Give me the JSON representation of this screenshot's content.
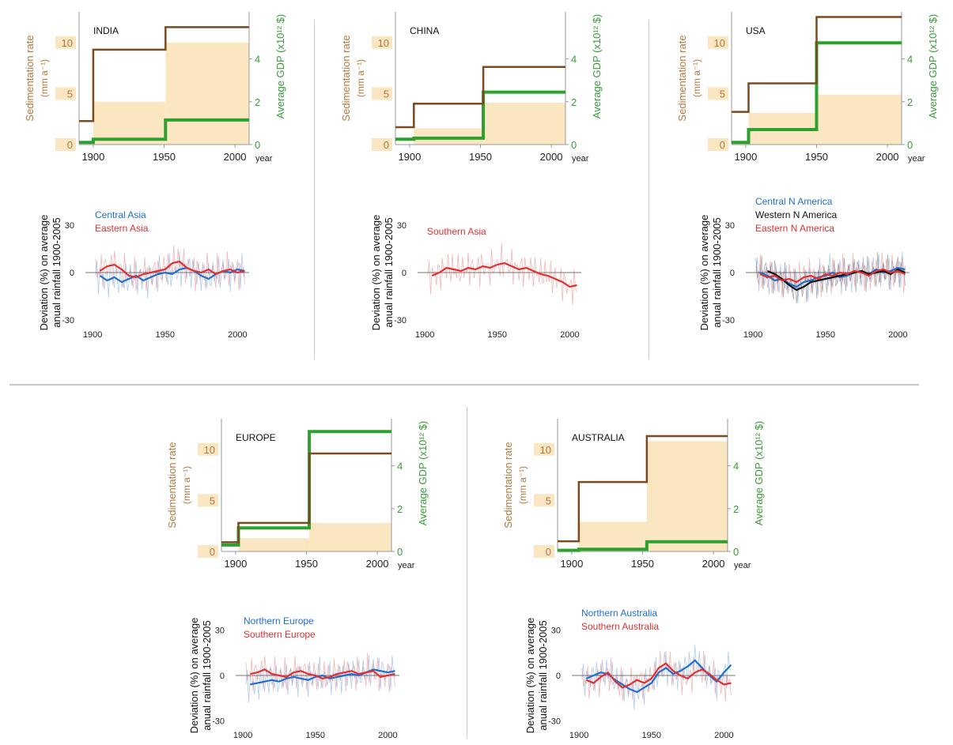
{
  "labels": {
    "sed_axis": "Sedimentation rate",
    "sed_unit": "(mm a⁻¹)",
    "gdp_axis": "Average GDP (x10¹² $)",
    "year": "year",
    "dev_axis_1": "Deviation (%) on average",
    "dev_axis_2": "anual rainfall 1900-2005"
  },
  "colors": {
    "sedimentation_line": "#7a4a20",
    "gdp_line": "#2ea02e",
    "sed_axis_text": "#b07a40",
    "gdp_axis_text": "#3a9a3a",
    "shading": "#fbe6c2",
    "blue": "#1f6fd1",
    "red": "#e03030",
    "black": "#111111"
  },
  "chart_data": [
    {
      "type": "line",
      "title": "INDIA",
      "x_ticks": [
        1900,
        1950,
        2000
      ],
      "sed_ticks": [
        0,
        5,
        10
      ],
      "gdp_ticks": [
        0,
        2,
        4
      ],
      "sedimentation": {
        "x": [
          1890,
          1900,
          1900,
          1951,
          1951,
          2010
        ],
        "y": [
          2.3,
          2.3,
          9.3,
          9.3,
          11.5,
          11.5
        ]
      },
      "gdp": {
        "x": [
          1890,
          1900,
          1900,
          1951,
          1951,
          2010
        ],
        "y": [
          0.1,
          0.1,
          0.25,
          0.25,
          1.15,
          1.15
        ]
      },
      "shading": [
        {
          "from": 1900,
          "to": 1951,
          "level": 4.2
        },
        {
          "from": 1951,
          "to": 2010,
          "level": 10.0
        }
      ]
    },
    {
      "type": "line",
      "title": "CHINA",
      "x_ticks": [
        1900,
        1950,
        2000
      ],
      "sed_ticks": [
        0,
        5,
        10
      ],
      "gdp_ticks": [
        0,
        2,
        4
      ],
      "sedimentation": {
        "x": [
          1890,
          1903,
          1903,
          1952,
          1952,
          2010
        ],
        "y": [
          1.7,
          1.7,
          4.0,
          4.0,
          7.6,
          7.6
        ]
      },
      "gdp": {
        "x": [
          1890,
          1903,
          1903,
          1952,
          1952,
          2010
        ],
        "y": [
          0.25,
          0.25,
          0.3,
          0.3,
          2.45,
          2.45
        ]
      },
      "shading": [
        {
          "from": 1903,
          "to": 1952,
          "level": 1.6
        },
        {
          "from": 1952,
          "to": 2010,
          "level": 4.1
        }
      ]
    },
    {
      "type": "line",
      "title": "USA",
      "x_ticks": [
        1900,
        1950,
        2000
      ],
      "sed_ticks": [
        0,
        5,
        10
      ],
      "gdp_ticks": [
        0,
        2,
        4
      ],
      "sedimentation": {
        "x": [
          1890,
          1902,
          1902,
          1950,
          1950,
          2010
        ],
        "y": [
          3.2,
          3.2,
          6.0,
          6.0,
          12.5,
          12.5
        ]
      },
      "gdp": {
        "x": [
          1890,
          1902,
          1902,
          1950,
          1950,
          2010
        ],
        "y": [
          0.1,
          0.1,
          0.7,
          0.7,
          4.75,
          4.75
        ]
      },
      "shading": [
        {
          "from": 1902,
          "to": 1950,
          "level": 3.1
        },
        {
          "from": 1950,
          "to": 2010,
          "level": 4.9
        }
      ]
    },
    {
      "type": "line",
      "title": "EUROPE",
      "x_ticks": [
        1900,
        1950,
        2000
      ],
      "sed_ticks": [
        0,
        5,
        10
      ],
      "gdp_ticks": [
        0,
        2,
        4
      ],
      "sedimentation": {
        "x": [
          1890,
          1902,
          1902,
          1952,
          1952,
          2010
        ],
        "y": [
          0.9,
          0.9,
          2.8,
          2.8,
          9.6,
          9.6
        ]
      },
      "gdp": {
        "x": [
          1890,
          1902,
          1902,
          1952,
          1952,
          2010
        ],
        "y": [
          0.3,
          0.3,
          1.1,
          1.1,
          5.6,
          5.6
        ]
      },
      "shading": [
        {
          "from": 1902,
          "to": 1952,
          "level": 1.3
        },
        {
          "from": 1952,
          "to": 2010,
          "level": 2.8
        }
      ]
    },
    {
      "type": "line",
      "title": "AUSTRALIA",
      "x_ticks": [
        1900,
        1950,
        2000
      ],
      "sed_ticks": [
        0,
        5,
        10
      ],
      "gdp_ticks": [
        0,
        2,
        4
      ],
      "sedimentation": {
        "x": [
          1890,
          1905,
          1905,
          1953,
          1953,
          2010
        ],
        "y": [
          1.0,
          1.0,
          6.8,
          6.8,
          11.3,
          11.3
        ]
      },
      "gdp": {
        "x": [
          1890,
          1905,
          1905,
          1953,
          1953,
          2010
        ],
        "y": [
          0.05,
          0.05,
          0.1,
          0.1,
          0.45,
          0.45
        ]
      },
      "shading": [
        {
          "from": 1905,
          "to": 1953,
          "level": 2.9
        },
        {
          "from": 1953,
          "to": 2010,
          "level": 10.8
        }
      ]
    },
    {
      "type": "line",
      "x_ticks": [
        1900,
        1950,
        2000
      ],
      "y_ticks": [
        -30,
        0,
        30
      ],
      "series": [
        {
          "name": "Central Asia",
          "color": "blue",
          "x": [
            1905,
            1910,
            1915,
            1920,
            1925,
            1930,
            1935,
            1940,
            1945,
            1950,
            1955,
            1960,
            1965,
            1970,
            1975,
            1980,
            1985,
            1990,
            1995,
            2000,
            2005
          ],
          "y": [
            -2,
            -5,
            -3,
            -6,
            -4,
            -2,
            -5,
            -3,
            -1,
            0,
            -1,
            2,
            3,
            1,
            -2,
            -4,
            -1,
            1,
            0,
            2,
            1
          ]
        },
        {
          "name": "Eastern Asia",
          "color": "red",
          "x": [
            1905,
            1910,
            1915,
            1920,
            1925,
            1930,
            1935,
            1940,
            1945,
            1950,
            1955,
            1960,
            1965,
            1970,
            1975,
            1980,
            1985,
            1990,
            1995,
            2000,
            2005
          ],
          "y": [
            1,
            4,
            5,
            2,
            -2,
            -3,
            -1,
            0,
            1,
            2,
            6,
            7,
            3,
            1,
            0,
            2,
            -1,
            1,
            2,
            0,
            1
          ]
        }
      ]
    },
    {
      "type": "line",
      "x_ticks": [
        1900,
        1950,
        2000
      ],
      "y_ticks": [
        -30,
        0,
        30
      ],
      "series": [
        {
          "name": "Southern Asia",
          "color": "red",
          "x": [
            1905,
            1910,
            1915,
            1920,
            1925,
            1930,
            1935,
            1940,
            1945,
            1950,
            1955,
            1960,
            1965,
            1970,
            1975,
            1980,
            1985,
            1990,
            1995,
            2000,
            2005
          ],
          "y": [
            -2,
            0,
            3,
            2,
            1,
            3,
            2,
            4,
            3,
            5,
            6,
            4,
            2,
            3,
            1,
            -1,
            -2,
            -4,
            -6,
            -9,
            -8
          ]
        }
      ]
    },
    {
      "type": "line",
      "x_ticks": [
        1900,
        1950,
        2000
      ],
      "y_ticks": [
        -30,
        0,
        30
      ],
      "series": [
        {
          "name": "Central N America",
          "color": "blue",
          "x": [
            1905,
            1910,
            1915,
            1920,
            1925,
            1930,
            1935,
            1940,
            1945,
            1950,
            1955,
            1960,
            1965,
            1970,
            1975,
            1980,
            1985,
            1990,
            1995,
            2000,
            2005
          ],
          "y": [
            0,
            -2,
            -5,
            -4,
            -7,
            -9,
            -6,
            -5,
            -3,
            -2,
            0,
            -3,
            -2,
            0,
            1,
            -1,
            2,
            0,
            1,
            3,
            2
          ]
        },
        {
          "name": "Western N America",
          "color": "black",
          "x": [
            1910,
            1915,
            1920,
            1925,
            1930,
            1935,
            1940,
            1945,
            1950,
            1955,
            1960,
            1965,
            1970,
            1975,
            1980,
            1985,
            1990,
            1995,
            2000,
            2005
          ],
          "y": [
            1,
            -1,
            -4,
            -8,
            -11,
            -9,
            -6,
            -5,
            -4,
            -3,
            -2,
            -1,
            0,
            1,
            -1,
            0,
            1,
            -1,
            2,
            0
          ]
        },
        {
          "name": "Eastern N America",
          "color": "red",
          "x": [
            1905,
            1910,
            1915,
            1920,
            1925,
            1930,
            1935,
            1940,
            1945,
            1950,
            1955,
            1960,
            1965,
            1970,
            1975,
            1980,
            1985,
            1990,
            1995,
            2000,
            2005
          ],
          "y": [
            -1,
            -3,
            -2,
            -5,
            -4,
            -6,
            -3,
            -2,
            -4,
            -1,
            -2,
            0,
            -1,
            1,
            0,
            -2,
            1,
            2,
            0,
            1,
            -1
          ]
        }
      ]
    },
    {
      "type": "line",
      "x_ticks": [
        1900,
        1950,
        2000
      ],
      "y_ticks": [
        -30,
        0,
        30
      ],
      "series": [
        {
          "name": "Northern Europe",
          "color": "blue",
          "x": [
            1905,
            1910,
            1915,
            1920,
            1925,
            1930,
            1935,
            1940,
            1945,
            1950,
            1955,
            1960,
            1965,
            1970,
            1975,
            1980,
            1985,
            1990,
            1995,
            2000,
            2005
          ],
          "y": [
            -6,
            -5,
            -4,
            -3,
            -4,
            -2,
            -1,
            -2,
            -3,
            -1,
            0,
            -2,
            -1,
            0,
            1,
            0,
            2,
            4,
            3,
            2,
            3
          ]
        },
        {
          "name": "Southern Europe",
          "color": "red",
          "x": [
            1905,
            1910,
            1915,
            1920,
            1925,
            1930,
            1935,
            1940,
            1945,
            1950,
            1955,
            1960,
            1965,
            1970,
            1975,
            1980,
            1985,
            1990,
            1995,
            2000,
            2005
          ],
          "y": [
            1,
            2,
            4,
            1,
            0,
            -1,
            2,
            3,
            1,
            0,
            -2,
            -1,
            1,
            2,
            3,
            1,
            2,
            3,
            -1,
            0,
            1
          ]
        }
      ]
    },
    {
      "type": "line",
      "x_ticks": [
        1900,
        1950,
        2000
      ],
      "y_ticks": [
        -30,
        0,
        30
      ],
      "series": [
        {
          "name": "Northern Australia",
          "color": "blue",
          "x": [
            1905,
            1910,
            1915,
            1920,
            1925,
            1930,
            1935,
            1940,
            1945,
            1950,
            1955,
            1960,
            1965,
            1970,
            1975,
            1980,
            1985,
            1990,
            1995,
            2000,
            2005
          ],
          "y": [
            -2,
            0,
            2,
            1,
            -3,
            -6,
            -9,
            -11,
            -8,
            -5,
            2,
            5,
            1,
            3,
            6,
            10,
            5,
            0,
            -4,
            2,
            7
          ]
        },
        {
          "name": "Southern Australia",
          "color": "red",
          "x": [
            1905,
            1910,
            1915,
            1920,
            1925,
            1930,
            1935,
            1940,
            1945,
            1950,
            1955,
            1960,
            1965,
            1970,
            1975,
            1980,
            1985,
            1990,
            1995,
            2000,
            2005
          ],
          "y": [
            -3,
            -5,
            -1,
            2,
            -4,
            -8,
            -6,
            -3,
            -5,
            -2,
            5,
            8,
            3,
            0,
            -2,
            2,
            4,
            1,
            -3,
            -6,
            -5
          ]
        }
      ]
    }
  ]
}
